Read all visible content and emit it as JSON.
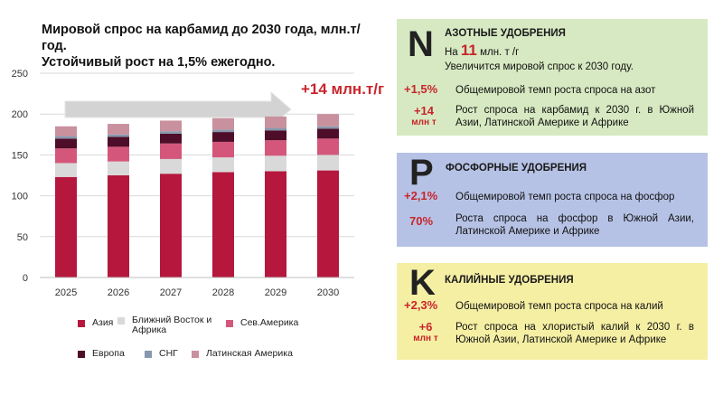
{
  "title": {
    "line1": "Мировой спрос на карбамид до 2030 года, млн.т/год.",
    "line2": "Устойчивый рост на 1,5% ежегодно."
  },
  "arrow_label": "+14 млн.т/г",
  "colors": {
    "asia": "#b5173d",
    "mideast_africa": "#d9d9d9",
    "north_america": "#d4577b",
    "europe": "#4e0d28",
    "cis": "#8797ad",
    "latin_america": "#c9909e",
    "accent_red": "#c8252b",
    "panel_n": "#d7e9c2",
    "panel_p": "#b6c2e5",
    "panel_k": "#f5efa4"
  },
  "chart_data": {
    "type": "bar",
    "stacked": true,
    "categories": [
      "2025",
      "2026",
      "2027",
      "2028",
      "2029",
      "2030"
    ],
    "series": [
      {
        "name": "Азия",
        "color": "#b5173d",
        "values": [
          123,
          125,
          127,
          129,
          130,
          131
        ]
      },
      {
        "name": "Ближний Восток и Африка",
        "color": "#d9d9d9",
        "values": [
          17,
          17,
          18,
          18,
          19,
          19
        ]
      },
      {
        "name": "Сев.Америка",
        "color": "#d4577b",
        "values": [
          18,
          18,
          19,
          19,
          19,
          20
        ]
      },
      {
        "name": "Европа",
        "color": "#4e0d28",
        "values": [
          12,
          12,
          12,
          12,
          12,
          12
        ]
      },
      {
        "name": "СНГ",
        "color": "#8797ad",
        "values": [
          3,
          3,
          3,
          3,
          3,
          3
        ]
      },
      {
        "name": "Латинская Америка",
        "color": "#c9909e",
        "values": [
          12,
          13,
          13,
          14,
          14,
          15
        ]
      }
    ],
    "ylim": [
      0,
      250
    ],
    "yticks": [
      "0",
      "50",
      "100",
      "150",
      "200",
      "250"
    ],
    "grid": true,
    "legend": "bottom"
  },
  "legend": {
    "asia": "Азия",
    "mideast_africa_1": "Ближний Восток и",
    "mideast_africa_2": "Африка",
    "north_america": "Сев.Америка",
    "europe": "Европа",
    "cis": "СНГ",
    "latin_america": "Латинская Америка"
  },
  "panels": {
    "nitrogen": {
      "letter": "N",
      "title": "АЗОТНЫЕ УДОБРЕНИЯ",
      "amount_prefix": "На ",
      "amount_value": "11",
      "amount_suffix": " млн. т /г",
      "amount_desc": "Увеличится мировой спрос к 2030 году.",
      "rate": "+1,5%",
      "rate_text": "Общемировой темп роста спроса на азот",
      "growth_value": "+14",
      "growth_unit": "млн т",
      "growth_text": "Рост спроса на карбамид к 2030 г. в Южной Азии, Латинской Америке и Африке"
    },
    "phosphorus": {
      "letter": "P",
      "title": "ФОСФОРНЫЕ УДОБРЕНИЯ",
      "rate": "+2,1%",
      "rate_text": "Общемировой темп роста спроса на фосфор",
      "share": "70%",
      "share_text": "Роста спроса на фосфор в Южной Азии, Латинской Америке и Африке"
    },
    "potassium": {
      "letter": "K",
      "title": "КАЛИЙНЫЕ УДОБРЕНИЯ",
      "rate": "+2,3%",
      "rate_text": "Общемировой темп роста спроса на калий",
      "growth_value": "+6",
      "growth_unit": "млн т",
      "growth_text": "Рост спроса на хлористый калий к 2030 г. в Южной Азии, Латинской Америке и Африке"
    }
  }
}
